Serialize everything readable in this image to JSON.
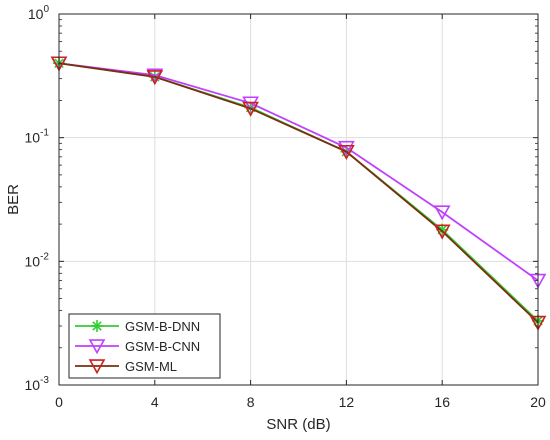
{
  "chart_data": {
    "type": "line",
    "xlabel": "SNR (dB)",
    "ylabel": "BER",
    "xlim": [
      0,
      20
    ],
    "ylim": [
      0.001,
      1
    ],
    "yscale": "log",
    "grid": true,
    "legend_position": "bottom-left",
    "x": [
      0,
      4,
      8,
      12,
      16,
      20
    ],
    "x_ticks": [
      "0",
      "4",
      "8",
      "12",
      "16",
      "20"
    ],
    "y_ticks": [
      {
        "base": "10",
        "exp": "0",
        "value": 1
      },
      {
        "base": "10",
        "exp": "-1",
        "value": 0.1
      },
      {
        "base": "10",
        "exp": "-2",
        "value": 0.01
      },
      {
        "base": "10",
        "exp": "-3",
        "value": 0.001
      }
    ],
    "series": [
      {
        "name": "GSM-B-DNN",
        "color": "#33cc33",
        "marker": "asterisk",
        "values": [
          0.4,
          0.31,
          0.175,
          0.077,
          0.018,
          0.0033
        ]
      },
      {
        "name": "GSM-B-CNN",
        "color": "#bf40ff",
        "marker": "triangle-down",
        "values": [
          0.4,
          0.32,
          0.19,
          0.083,
          0.025,
          0.007
        ]
      },
      {
        "name": "GSM-ML",
        "color": "#cc1f1f",
        "line_color": "#7a2e0e",
        "marker": "triangle-down",
        "values": [
          0.4,
          0.31,
          0.172,
          0.077,
          0.0175,
          0.0032
        ]
      }
    ]
  }
}
